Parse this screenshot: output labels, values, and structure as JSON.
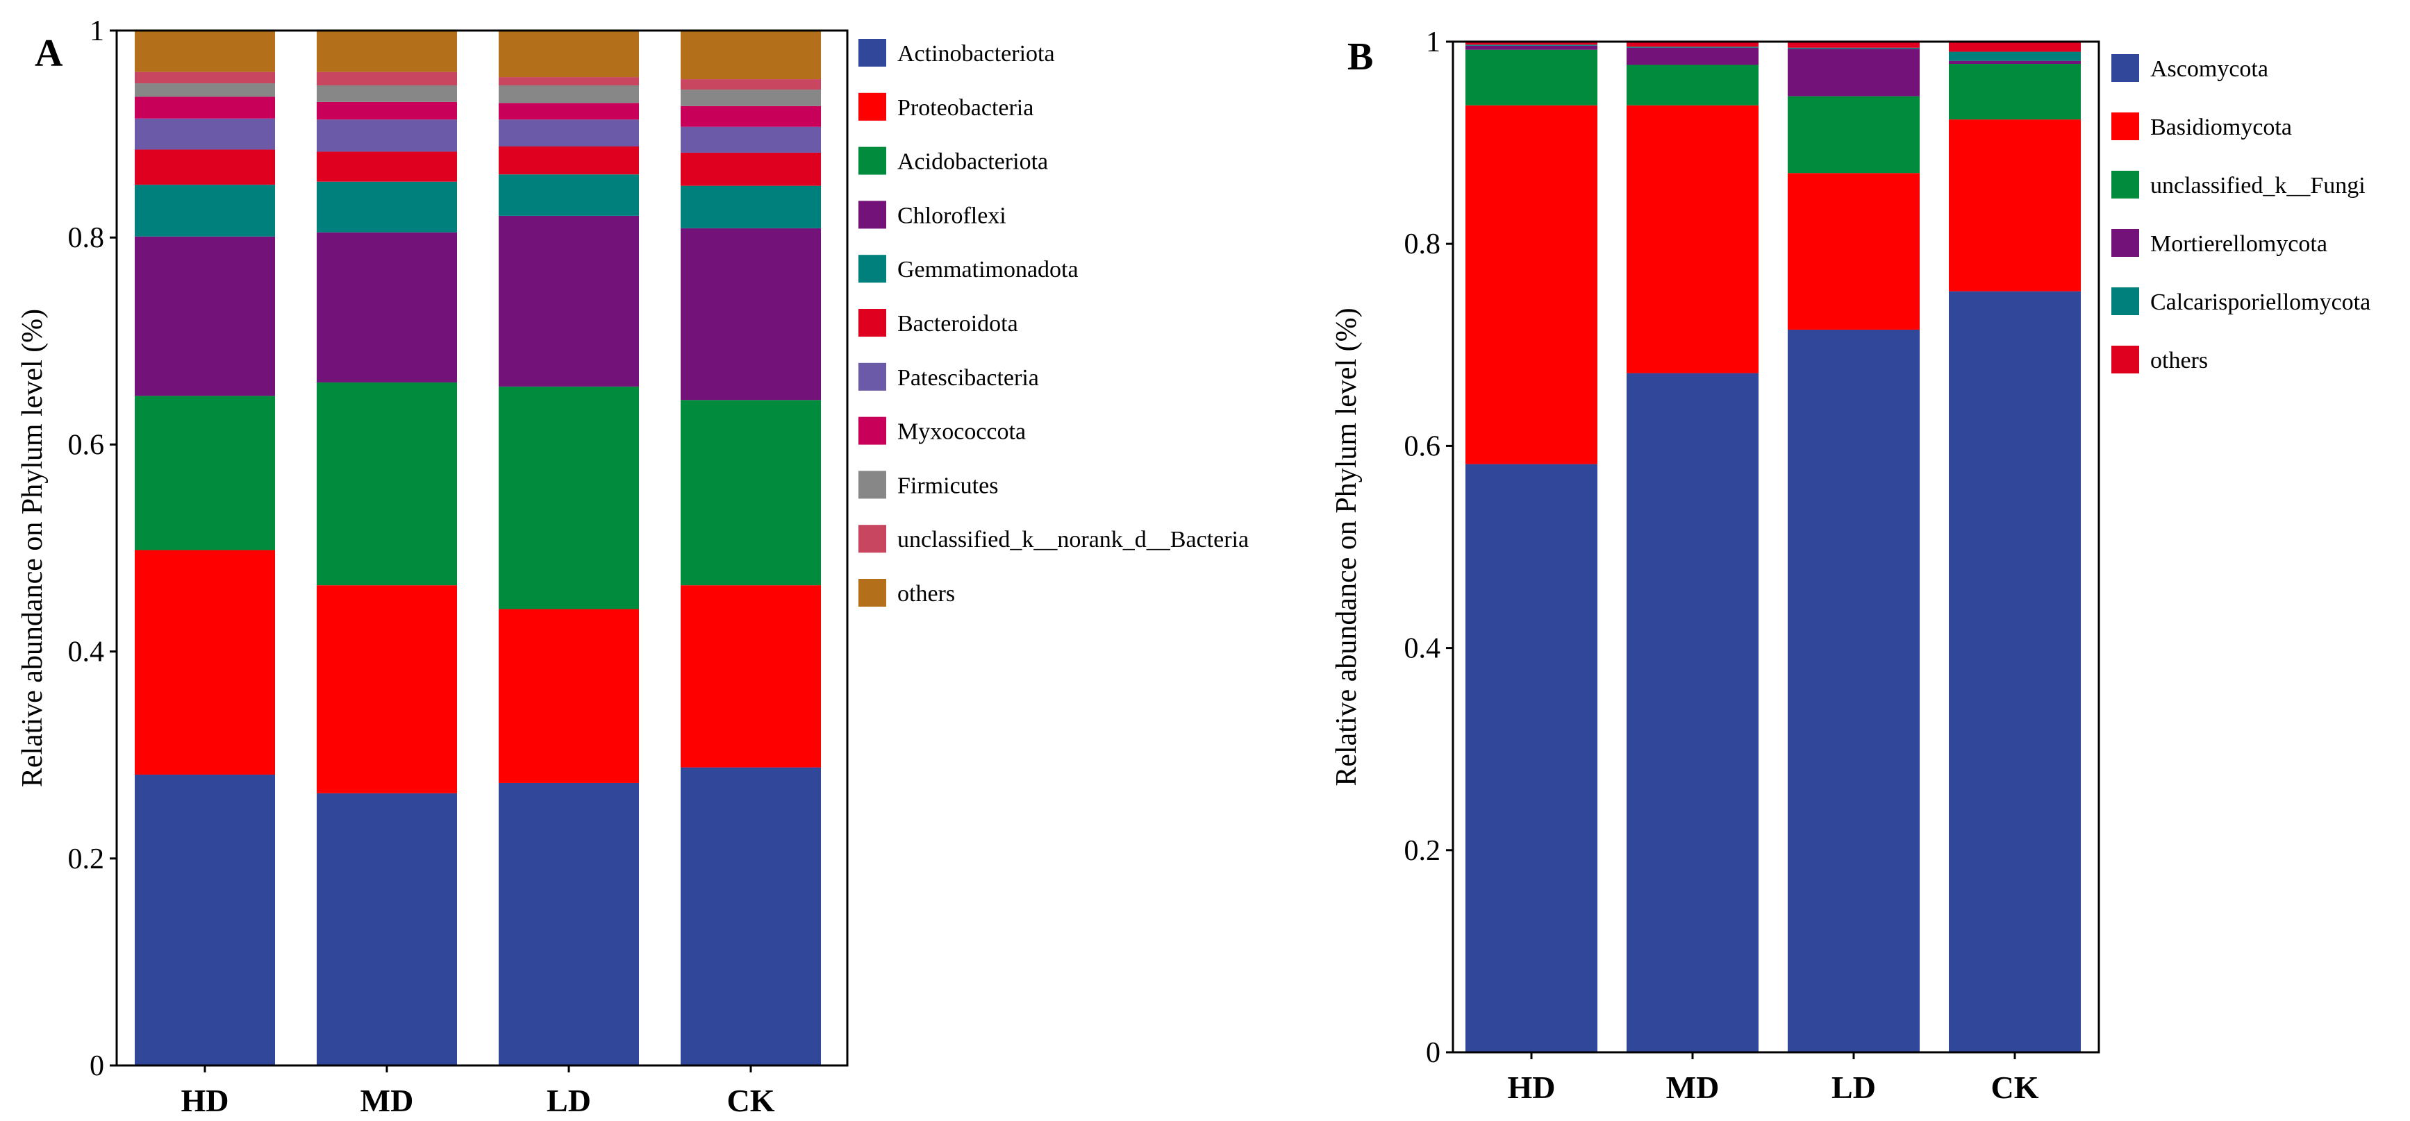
{
  "figure": {
    "panels": [
      {
        "panel_label": "A",
        "colors": {
          "Actinobacteriota": "#30479a",
          "Proteobacteria": "#ff0000",
          "Acidobacteriota": "#008c3c",
          "Chloroflexi": "#731278",
          "Gemmatimonadota": "#00807c",
          "Bacteroidota": "#df0020",
          "Patescibacteria": "#6b5aa8",
          "Myxococcota": "#c8005a",
          "Firmicutes": "#878787",
          "unclassified_k__norank_d__Bacteria": "#c94660",
          "others": "#b46f1a"
        }
      },
      {
        "panel_label": "B",
        "colors": {
          "Ascomycota": "#30479a",
          "Basidiomycota": "#ff0000",
          "unclassified_k__Fungi": "#008c3c",
          "Mortierellomycota": "#731278",
          "Calcarisporiellomycota": "#00807c",
          "others": "#df0020"
        }
      }
    ]
  },
  "chart_data": [
    {
      "type": "bar",
      "stacked": true,
      "title": "",
      "xlabel": "",
      "ylabel": "Relative abundance on Phylum level (%)",
      "ylim": [
        0,
        1
      ],
      "yticks": [
        "0",
        "0.2",
        "0.4",
        "0.6",
        "0.8",
        "1"
      ],
      "categories": [
        "HD",
        "MD",
        "LD",
        "CK"
      ],
      "legend_position": "right",
      "series": [
        {
          "name": "Actinobacteriota",
          "values": [
            0.281,
            0.263,
            0.273,
            0.288
          ]
        },
        {
          "name": "Proteobacteria",
          "values": [
            0.217,
            0.201,
            0.168,
            0.176
          ]
        },
        {
          "name": "Acidobacteriota",
          "values": [
            0.149,
            0.196,
            0.215,
            0.179
          ]
        },
        {
          "name": "Chloroflexi",
          "values": [
            0.154,
            0.145,
            0.165,
            0.166
          ]
        },
        {
          "name": "Gemmatimonadota",
          "values": [
            0.05,
            0.049,
            0.04,
            0.041
          ]
        },
        {
          "name": "Bacteroidota",
          "values": [
            0.034,
            0.029,
            0.027,
            0.032
          ]
        },
        {
          "name": "Patescibacteria",
          "values": [
            0.03,
            0.031,
            0.026,
            0.025
          ]
        },
        {
          "name": "Myxococcota",
          "values": [
            0.021,
            0.017,
            0.016,
            0.02
          ]
        },
        {
          "name": "Firmicutes",
          "values": [
            0.013,
            0.016,
            0.017,
            0.016
          ]
        },
        {
          "name": "unclassified_k__norank_d__Bacteria",
          "values": [
            0.011,
            0.013,
            0.008,
            0.01
          ]
        },
        {
          "name": "others",
          "values": [
            0.04,
            0.04,
            0.045,
            0.047
          ]
        }
      ]
    },
    {
      "type": "bar",
      "stacked": true,
      "title": "",
      "xlabel": "",
      "ylabel": "Relative abundance on Phylum level (%)",
      "ylim": [
        0,
        1
      ],
      "yticks": [
        "0",
        "0.2",
        "0.4",
        "0.6",
        "0.8",
        "1"
      ],
      "categories": [
        "HD",
        "MD",
        "LD",
        "CK"
      ],
      "legend_position": "right",
      "series": [
        {
          "name": "Ascomycota",
          "values": [
            0.582,
            0.672,
            0.715,
            0.753
          ]
        },
        {
          "name": "Basidiomycota",
          "values": [
            0.355,
            0.265,
            0.155,
            0.17
          ]
        },
        {
          "name": "unclassified_k__Fungi",
          "values": [
            0.055,
            0.04,
            0.076,
            0.055
          ]
        },
        {
          "name": "Mortierellomycota",
          "values": [
            0.004,
            0.017,
            0.047,
            0.003
          ]
        },
        {
          "name": "Calcarisporiellomycota",
          "values": [
            0.001,
            0.001,
            0.001,
            0.009
          ]
        },
        {
          "name": "others",
          "values": [
            0.003,
            0.005,
            0.006,
            0.01
          ]
        }
      ]
    }
  ]
}
